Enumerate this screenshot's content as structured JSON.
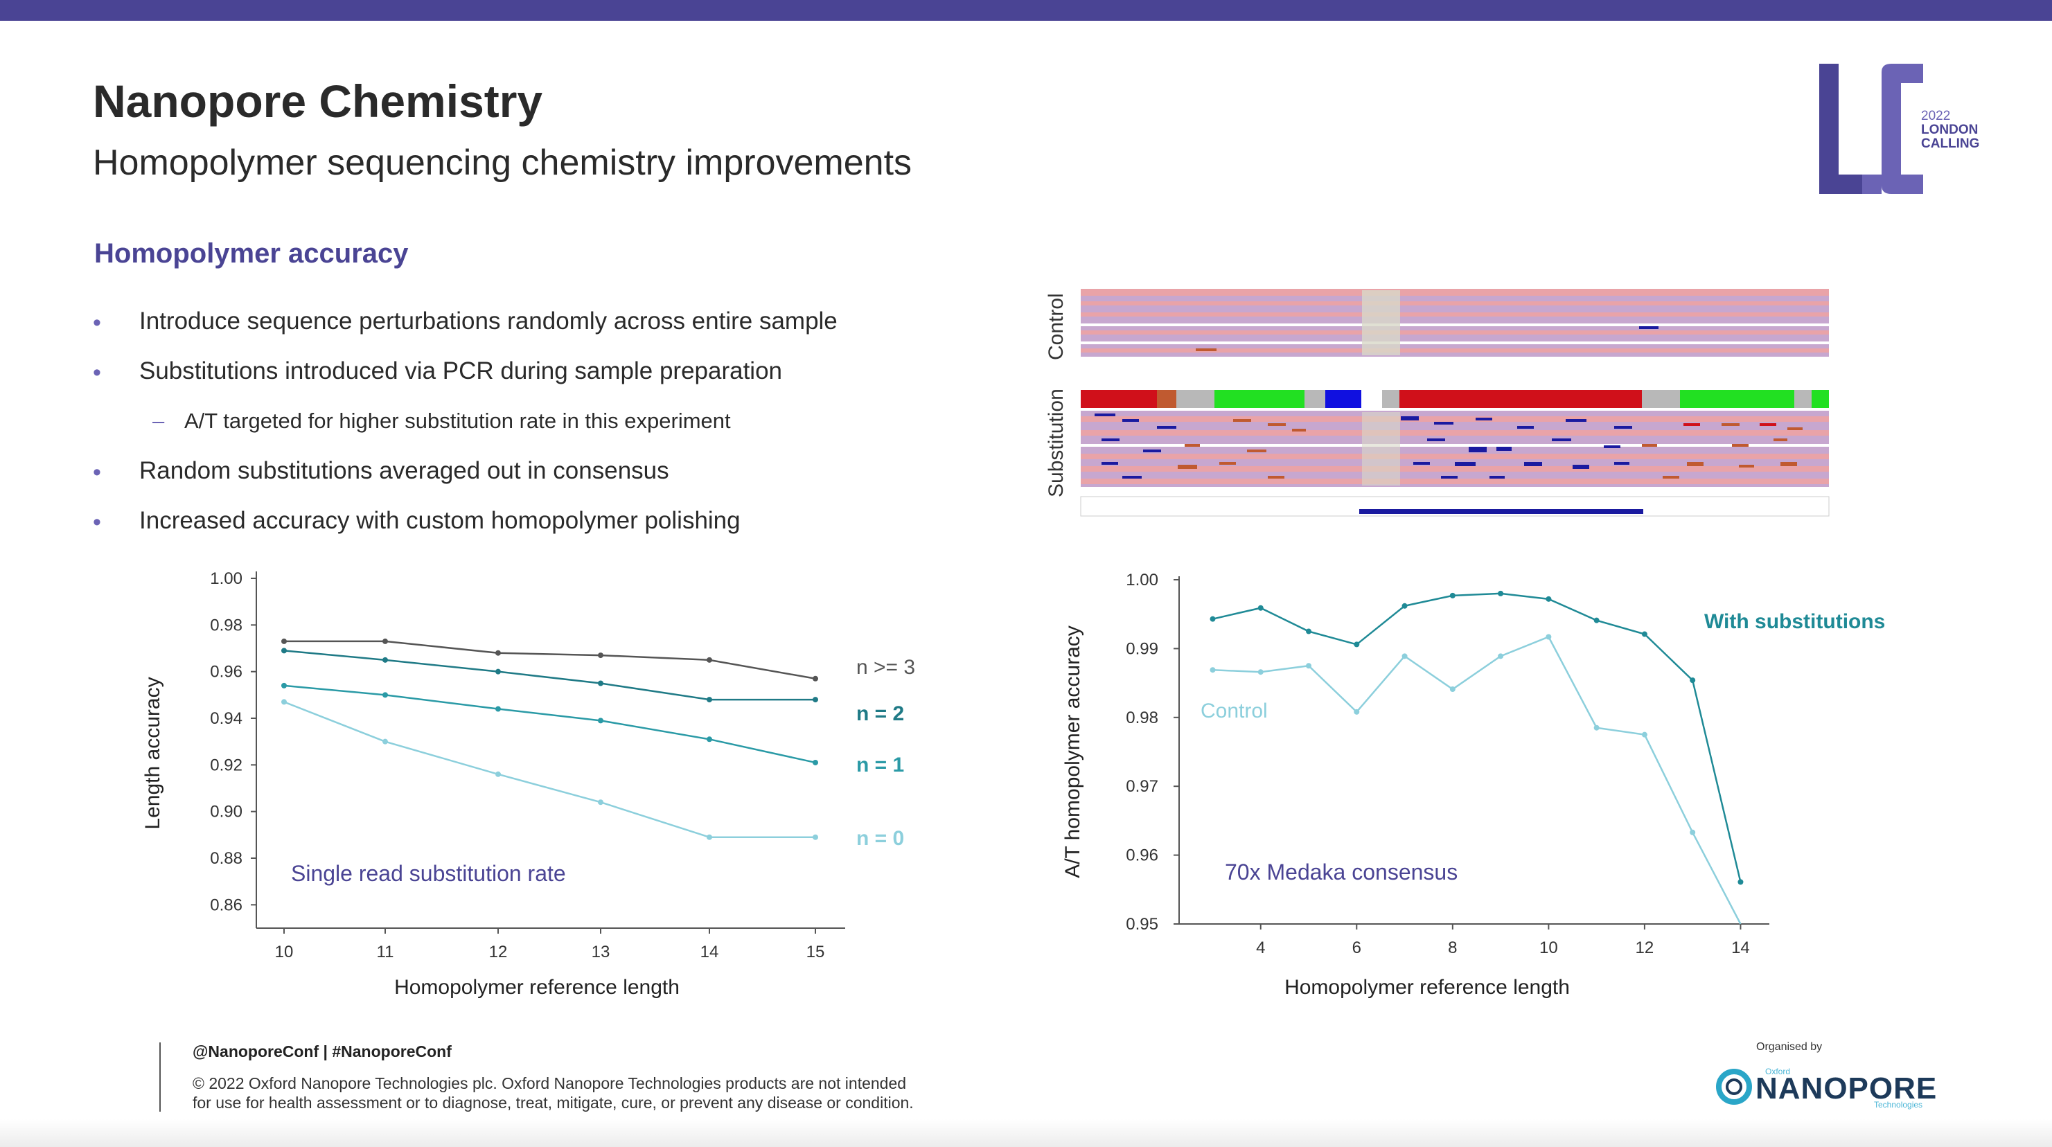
{
  "slide": {
    "title": "Nanopore Chemistry",
    "subtitle": "Homopolymer sequencing chemistry improvements",
    "section_heading": "Homopolymer accuracy",
    "bullets": [
      {
        "text": "Introduce sequence perturbations randomly across entire sample",
        "level": 1
      },
      {
        "text": "Substitutions introduced via PCR during sample preparation",
        "level": 1
      },
      {
        "text": "A/T targeted for higher substitution rate in this experiment",
        "level": 2
      },
      {
        "text": "Random substitutions averaged out in consensus",
        "level": 1
      },
      {
        "text": "Increased accuracy with custom homopolymer polishing",
        "level": 1
      }
    ],
    "bullet_marker": "•",
    "sub_marker": "–",
    "logo": {
      "year": "2022",
      "line1": "LONDON",
      "line2": "CALLING",
      "letters": "LC",
      "color": "#4a4494"
    },
    "genome_view": {
      "control_label": "Control",
      "substitution_label": "Substitution"
    },
    "footer": {
      "tag": "@NanoporeConf | #NanoporeConf",
      "copyright_line1": "© 2022 Oxford Nanopore Technologies plc. Oxford Nanopore Technologies products are not intended",
      "copyright_line2": "for use for health assessment or to diagnose, treat, mitigate, cure, or prevent any disease or condition.",
      "organised_by": "Organised by",
      "brand_small": "Oxford",
      "brand": "NANOPORE",
      "brand_tech": "Technologies"
    },
    "colors": {
      "accent": "#4a4494",
      "teal_dark": "#1f8a96",
      "teal_light": "#8ccfdc",
      "gray_line": "#555555"
    }
  },
  "chart_data": [
    {
      "type": "line",
      "xlabel": "Homopolymer reference length",
      "ylabel": "Length accuracy",
      "annotation": "Single read substitution rate",
      "categories": [
        "10",
        "11",
        "12",
        "13",
        "14",
        "15"
      ],
      "ylim": [
        0.85,
        1.0
      ],
      "yticks": [
        "1.00",
        "0.98",
        "0.96",
        "0.94",
        "0.92",
        "0.90",
        "0.88",
        "0.86"
      ],
      "grid": false,
      "legend": "right (inline labels)",
      "series": [
        {
          "name": "n >= 3",
          "color": "#555555",
          "values": [
            0.973,
            0.973,
            0.968,
            0.967,
            0.965,
            0.957
          ]
        },
        {
          "name": "n = 2",
          "color": "#1f7a86",
          "values": [
            0.969,
            0.965,
            0.96,
            0.955,
            0.948,
            0.948
          ]
        },
        {
          "name": "n = 1",
          "color": "#2a9aa6",
          "values": [
            0.954,
            0.95,
            0.944,
            0.939,
            0.931,
            0.921
          ]
        },
        {
          "name": "n = 0",
          "color": "#8ccfdc",
          "values": [
            0.947,
            0.93,
            0.916,
            0.904,
            0.889,
            0.889
          ]
        }
      ]
    },
    {
      "type": "line",
      "xlabel": "Homopolymer reference length",
      "ylabel": "A/T homopolymer accuracy",
      "annotation": "70x Medaka consensus",
      "x": [
        3,
        4,
        5,
        6,
        7,
        8,
        9,
        10,
        11,
        12,
        13,
        14
      ],
      "xticks": [
        "4",
        "6",
        "8",
        "10",
        "12",
        "14"
      ],
      "xlim": [
        2.3,
        14.6
      ],
      "ylim": [
        0.95,
        1.0
      ],
      "yticks": [
        "1.00",
        "0.99",
        "0.98",
        "0.97",
        "0.96",
        "0.95"
      ],
      "grid": false,
      "legend": "inline labels",
      "series": [
        {
          "name": "With substitutions",
          "color": "#1f8a96",
          "values": [
            0.9943,
            0.9959,
            0.9925,
            0.9906,
            0.9962,
            0.9977,
            0.998,
            0.9972,
            0.9941,
            0.9921,
            0.9854,
            0.9561
          ]
        },
        {
          "name": "Control",
          "color": "#8ccfdc",
          "values": [
            0.9869,
            0.9866,
            0.9875,
            0.9808,
            0.9889,
            0.9841,
            0.9889,
            0.9917,
            0.9785,
            0.9775,
            0.9633,
            0.95
          ]
        }
      ]
    }
  ]
}
